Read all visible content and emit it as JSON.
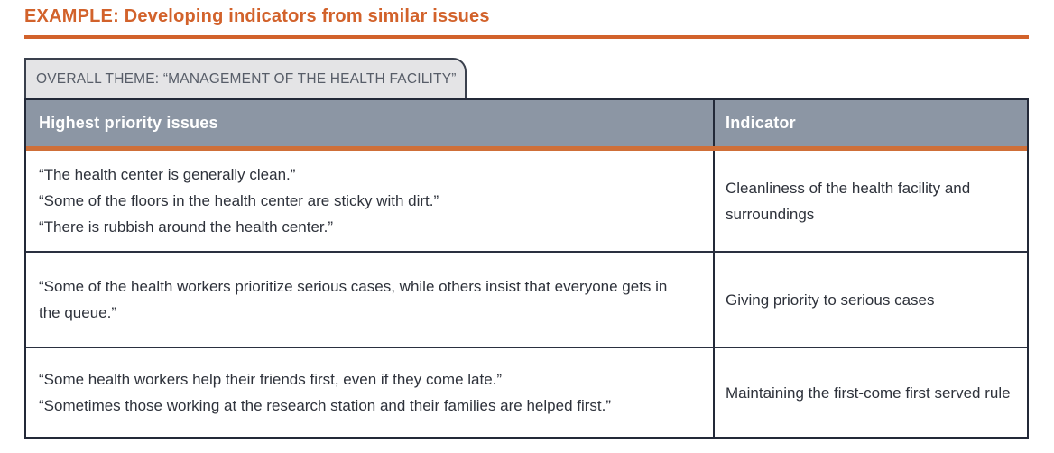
{
  "page": {
    "title": "EXAMPLE: Developing indicators from similar issues"
  },
  "tab": {
    "label": "OVERALL THEME: “MANAGEMENT OF THE HEALTH FACILITY”"
  },
  "table": {
    "columns": [
      "Highest priority issues",
      "Indicator"
    ],
    "rows": [
      {
        "issues": [
          "“The health center is generally clean.”",
          "“Some of the floors in the health center are sticky with dirt.”",
          "“There is rubbish around the health center.”"
        ],
        "indicator": "Cleanliness of the health facility and surroundings"
      },
      {
        "issues": [
          "“Some of the health workers prioritize serious cases, while others insist that everyone gets in the queue.”"
        ],
        "indicator": "Giving priority to serious cases"
      },
      {
        "issues": [
          "“Some health workers help their friends first, even if they come late.”",
          "“Sometimes those working at the research station and their families are helped first.”"
        ],
        "indicator": "Maintaining the first-come first served rule"
      }
    ]
  },
  "colors": {
    "accent_orange": "#d2622b",
    "header_rule_orange": "#cf6f38",
    "header_bg": "#8c96a4",
    "tab_bg": "#e4e4e6",
    "border_dark": "#232938",
    "body_text": "#2e323b",
    "tab_text": "#575d68"
  }
}
